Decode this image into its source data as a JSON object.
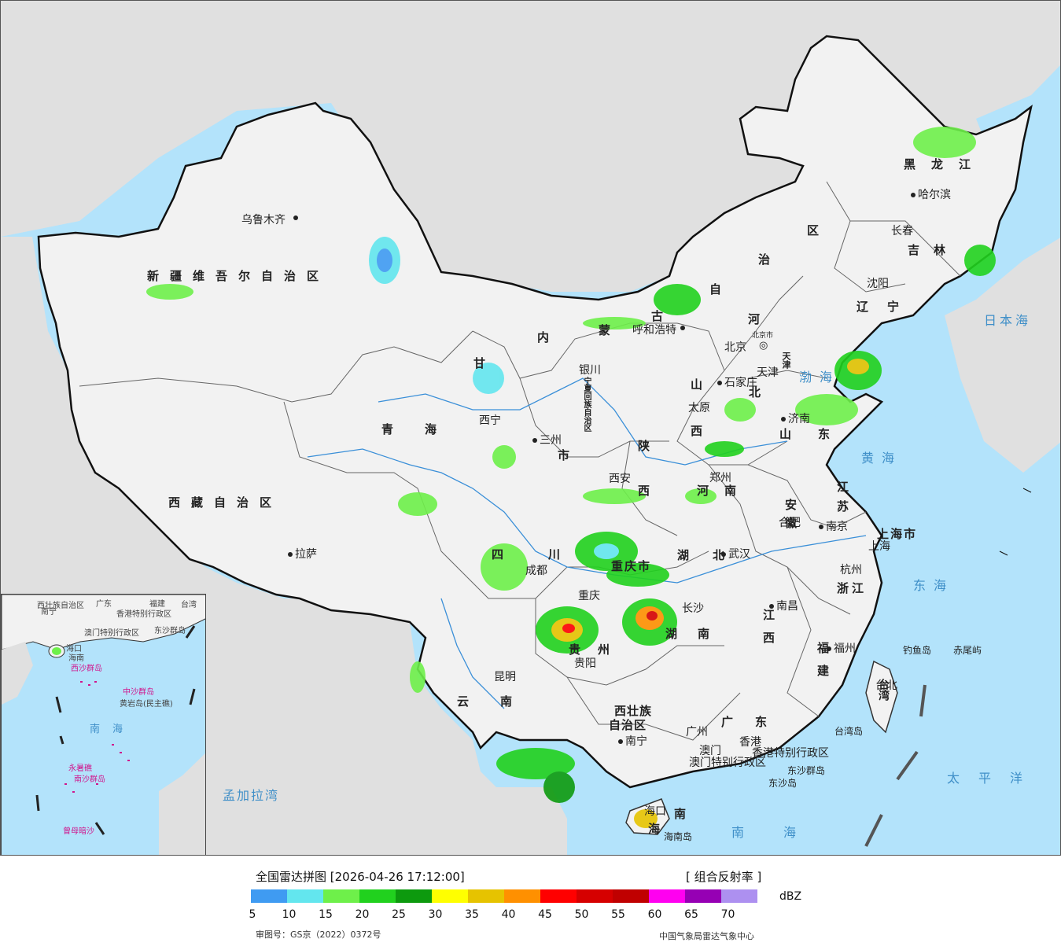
{
  "legend": {
    "title": "全国雷达拼图 [2026-04-26 17:12:00]",
    "product": "[ 组合反射率 ]",
    "unit": "dBZ",
    "ticks": [
      "5",
      "10",
      "15",
      "20",
      "25",
      "30",
      "35",
      "40",
      "45",
      "50",
      "55",
      "60",
      "65",
      "70"
    ],
    "colors": [
      "#3f9bf2",
      "#63e6ee",
      "#6ef04a",
      "#21d11e",
      "#0d9a0e",
      "#ffff00",
      "#e6c300",
      "#ff9000",
      "#ff0000",
      "#d60000",
      "#c00000",
      "#ff00f0",
      "#9600b4",
      "#ad90f0"
    ],
    "approval": "审图号：GS京（2022）0372号",
    "credit": "中国气象局雷达气象中心"
  },
  "regions": {
    "xinjiang": "新疆维吾尔自治区",
    "xizang": "西藏自治区",
    "qinghai": "青海",
    "gansu": "甘",
    "neimenggu_1": "内",
    "neimenggu_2": "蒙",
    "neimenggu_3": "古",
    "neimenggu_4": "自",
    "neimenggu_5": "治",
    "neimenggu_6": "区",
    "heilongjiang": "黑龙江",
    "jilin": "吉林",
    "liaoning": "辽宁",
    "hebei_1": "河",
    "hebei_2": "北",
    "shanxi_1": "山",
    "shanxi_2": "西",
    "shandong": "山东",
    "henan": "河南",
    "shaanxi_1": "陕",
    "shaanxi_2": "西",
    "sichuan_1": "四",
    "sichuan_2": "川",
    "chongqing": "重庆市",
    "hubei": "湖北",
    "hunan": "湖南",
    "anhui": "安徽",
    "jiangsu": "江苏",
    "zhejiang": "浙江",
    "jiangxi": "江西",
    "fujian": "福建",
    "guizhou": "贵州",
    "yunnan": "云南",
    "guangxi_1": "西壮族",
    "guangxi_2": "自治区",
    "guangdong": "广东",
    "hainan": "南",
    "ningxia": "宁夏回族自治区",
    "gansu_2": "市",
    "taiwan": "台湾",
    "shanghai": "上海市",
    "tianjin": "天津",
    "hainan_2": "海"
  },
  "cities": {
    "urumqi": "乌鲁木齐",
    "lhasa": "拉萨",
    "xining": "西宁",
    "lanzhou": "三州",
    "yinchuan": "银川",
    "hohhot": "呼和浩特",
    "beijing": "北京",
    "beijing_city": "北京市",
    "tianjin": "天津",
    "shijiazhuang": "石家庄",
    "taiyuan": "太原",
    "jinan": "济南",
    "zhengzhou": "郑州",
    "xian": "西安",
    "chengdu": "成都",
    "chongqing": "重庆",
    "wuhan": "武汉",
    "hefei": "合肥",
    "nanjing": "南京",
    "shanghai": "上海",
    "hangzhou": "杭州",
    "changsha": "长沙",
    "nanchang": "南昌",
    "fuzhou": "福州",
    "guiyang": "贵阳",
    "kunming": "昆明",
    "nanning": "南宁",
    "guangzhou": "广州",
    "hongkong": "香港",
    "macau": "澳门",
    "haikou": "海口",
    "taipei": "台北",
    "shenyang": "沈阳",
    "changchun": "长春",
    "harbin": "哈尔滨",
    "hk_sar": "香港特别行政区",
    "macau_sar": "澳门特别行政区"
  },
  "seas": {
    "bohai": "渤海",
    "yellow": "黄海",
    "east": "东海",
    "south": "南海",
    "japan": "日本海",
    "pacific": "太平洋",
    "bengal": "孟加拉湾"
  },
  "islands": {
    "diaoyu": "钓鱼岛",
    "chiwei": "赤尾屿",
    "dongsha": "东沙群岛",
    "dongsha_2": "东沙岛",
    "hainan_island": "海南岛",
    "taiwan_island": "台湾岛"
  },
  "inset": {
    "guangdong": "广东",
    "guangxi": "西壮族自治区",
    "fujian": "福建",
    "taiwan": "台湾",
    "hk": "香港特别行政区",
    "macau": "澳门特别行政区",
    "dongsha": "东沙群岛",
    "nanning": "南宁",
    "hainan": "海南",
    "haikou": "海口",
    "xisha": "西沙群岛",
    "zhongsha": "中沙群岛",
    "huangyan": "黄岩岛(民主礁)",
    "south_sea": "南海",
    "yongshu": "永暑礁",
    "nansha": "南沙群岛",
    "zengmu": "曾母暗沙"
  }
}
